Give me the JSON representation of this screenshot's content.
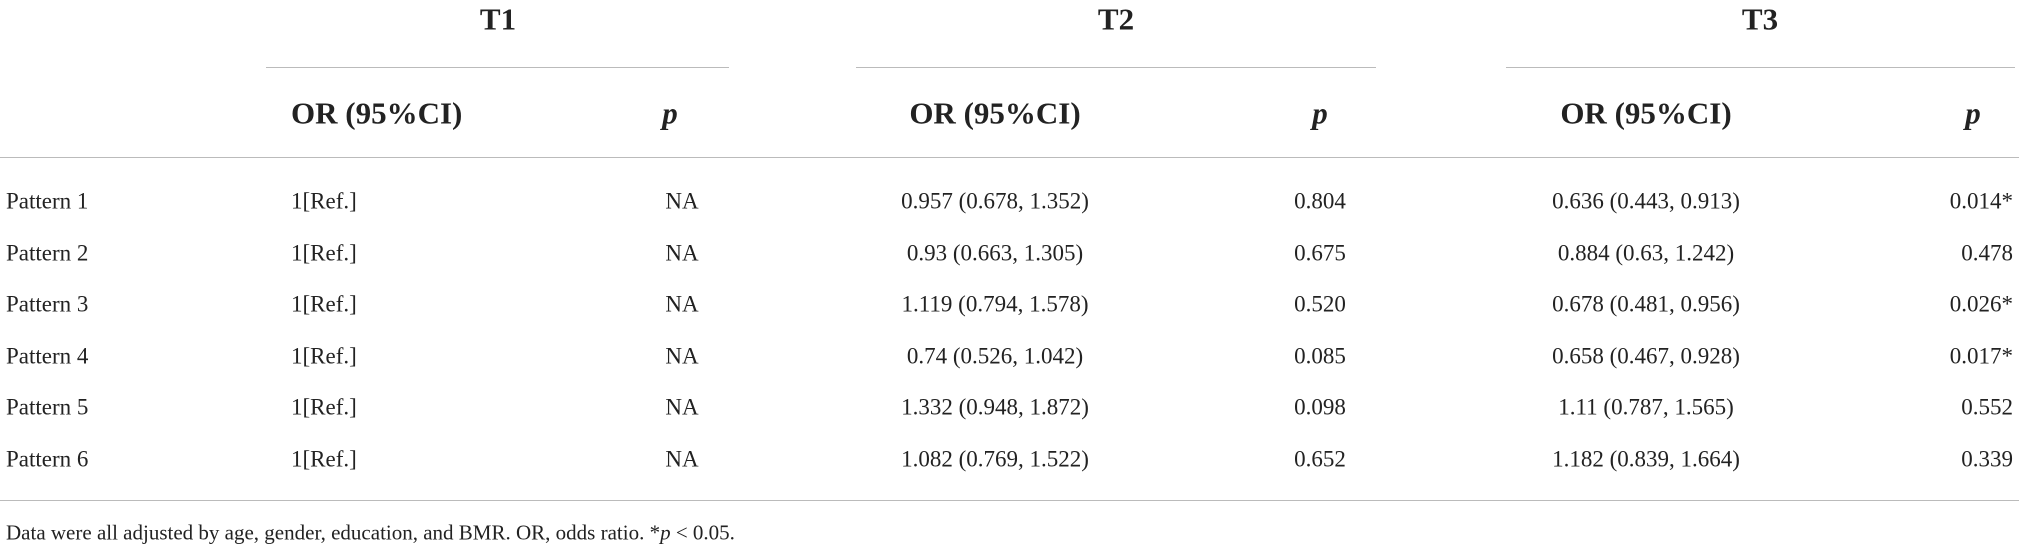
{
  "table": {
    "groups": [
      "T1",
      "T2",
      "T3"
    ],
    "subheaders": [
      "OR (95%CI)",
      "p",
      "OR (95%CI)",
      "p",
      "OR (95%CI)",
      "p"
    ],
    "rows": [
      [
        "Pattern 1",
        "1[Ref.]",
        "NA",
        "0.957 (0.678, 1.352)",
        "0.804",
        "0.636 (0.443, 0.913)",
        "0.014*"
      ],
      [
        "Pattern 2",
        "1[Ref.]",
        "NA",
        "0.93 (0.663, 1.305)",
        "0.675",
        "0.884 (0.63, 1.242)",
        "0.478"
      ],
      [
        "Pattern 3",
        "1[Ref.]",
        "NA",
        "1.119 (0.794, 1.578)",
        "0.520",
        "0.678 (0.481, 0.956)",
        "0.026*"
      ],
      [
        "Pattern 4",
        "1[Ref.]",
        "NA",
        "0.74 (0.526, 1.042)",
        "0.085",
        "0.658 (0.467, 0.928)",
        "0.017*"
      ],
      [
        "Pattern 5",
        "1[Ref.]",
        "NA",
        "1.332 (0.948, 1.872)",
        "0.098",
        "1.11 (0.787, 1.565)",
        "0.552"
      ],
      [
        "Pattern 6",
        "1[Ref.]",
        "NA",
        "1.082 (0.769, 1.522)",
        "0.652",
        "1.182 (0.839, 1.664)",
        "0.339"
      ]
    ]
  },
  "footnote": [
    "Data were all adjusted by age, gender, education, and BMR. OR, odds ratio. *",
    "p",
    " < 0.05."
  ]
}
